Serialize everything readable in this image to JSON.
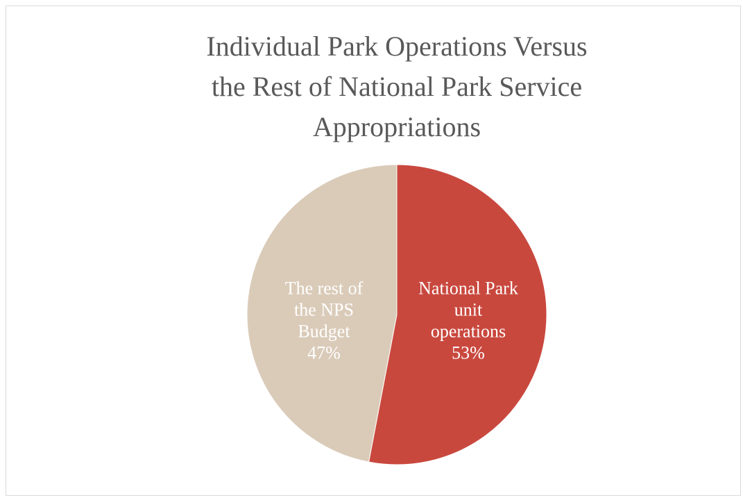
{
  "chart_data": {
    "type": "pie",
    "title_lines": [
      "Individual Park Operations Versus",
      "the Rest of National Park Service",
      "Appropriations"
    ],
    "slices": [
      {
        "label_lines": [
          "National Park",
          "unit",
          "operations"
        ],
        "percent_label": "53%",
        "value": 53,
        "color": "#c9483e",
        "label_color": "#ffffff"
      },
      {
        "label_lines": [
          "The rest of",
          "the NPS",
          "Budget"
        ],
        "percent_label": "47%",
        "value": 47,
        "color": "#dacbb9",
        "label_color": "#ffffff"
      }
    ],
    "start_angle_deg": 0,
    "direction": "clockwise",
    "legend": "none"
  }
}
